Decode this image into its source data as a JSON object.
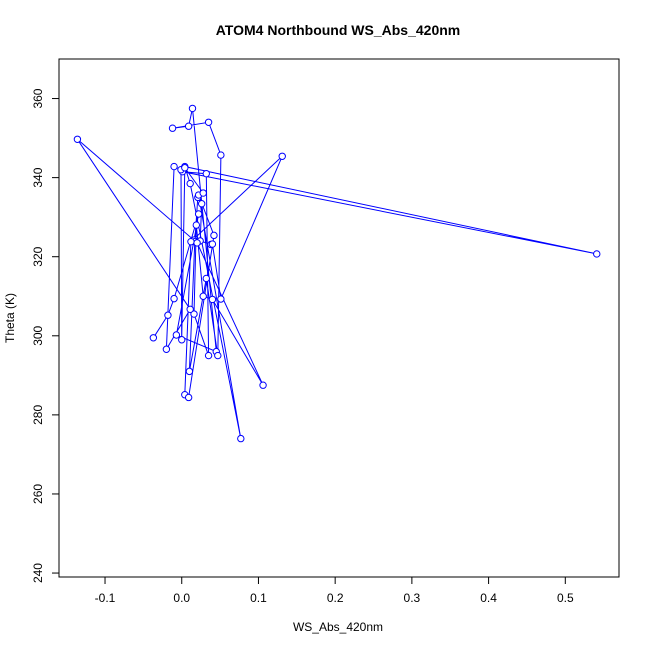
{
  "chart_data": {
    "type": "line",
    "title": "ATOM4 Northbound WS_Abs_420nm",
    "xlabel": "WS_Abs_420nm",
    "ylabel": "Theta (K)",
    "xlim": [
      -0.16,
      0.57
    ],
    "ylim": [
      239,
      370
    ],
    "x_ticks": [
      -0.1,
      0.0,
      0.1,
      0.2,
      0.3,
      0.4,
      0.5
    ],
    "x_tick_labels": [
      "-0.1",
      "0.0",
      "0.1",
      "0.2",
      "0.3",
      "0.4",
      "0.5"
    ],
    "y_ticks": [
      240,
      260,
      280,
      300,
      320,
      340,
      360
    ],
    "y_tick_labels": [
      "240",
      "260",
      "280",
      "300",
      "320",
      "340",
      "360"
    ],
    "grid": false,
    "colors": {
      "series": "#0000ff",
      "frame": "#000000"
    },
    "series": [
      {
        "marker": "open-circle",
        "points": [
          [
            -0.037,
            299.5
          ],
          [
            -0.018,
            305.2
          ],
          [
            -0.01,
            309.4
          ],
          [
            0.022,
            330.8
          ],
          [
            0.016,
            324.2
          ],
          [
            -0.007,
            300.2
          ],
          [
            0.045,
            296.0
          ],
          [
            0.014,
            357.5
          ],
          [
            0.009,
            353.0
          ],
          [
            -0.012,
            352.5
          ],
          [
            0.035,
            354.0
          ],
          [
            0.051,
            345.7
          ],
          [
            0.047,
            295.0
          ],
          [
            0.032,
            314.5
          ],
          [
            0.01,
            291.0
          ],
          [
            0.017,
            323.8
          ],
          [
            0.021,
            335.0
          ],
          [
            0.026,
            333.4
          ],
          [
            0.024,
            324.0
          ],
          [
            0.038,
            323.1
          ],
          [
            0.04,
            323.2
          ],
          [
            0.051,
            309.3
          ],
          [
            0.131,
            345.4
          ],
          [
            0.012,
            323.8
          ],
          [
            0.004,
            285.1
          ],
          [
            0.009,
            284.4
          ],
          [
            0.042,
            325.4
          ],
          [
            0.022,
            335.6
          ],
          [
            0.077,
            274.0
          ],
          [
            0.011,
            338.5
          ],
          [
            0.004,
            342.8
          ],
          [
            0.541,
            320.7
          ],
          [
            0.001,
            341.5
          ],
          [
            0.032,
            341.0
          ],
          [
            0.035,
            295.0
          ],
          [
            0.016,
            305.5
          ],
          [
            0.019,
            328.0
          ],
          [
            0.028,
            310.0
          ],
          [
            0.04,
            309.2
          ],
          [
            0.106,
            287.5
          ],
          [
            0.02,
            323.5
          ],
          [
            -0.136,
            349.7
          ],
          [
            0.011,
            306.7
          ],
          [
            -0.02,
            296.6
          ],
          [
            -0.01,
            342.8
          ],
          [
            -0.001,
            342.0
          ],
          [
            0.0,
            299.0
          ],
          [
            0.004,
            342.5
          ],
          [
            0.028,
            336.1
          ]
        ]
      }
    ]
  }
}
